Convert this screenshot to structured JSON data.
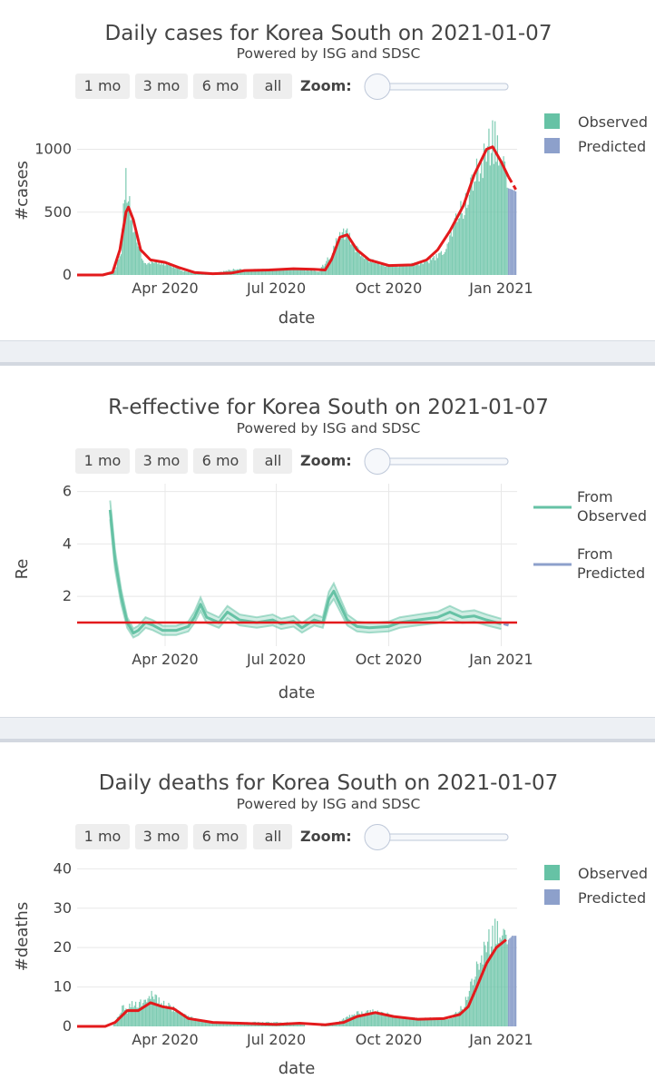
{
  "colors": {
    "observed": "#66c2a5",
    "predicted": "#8da0cb",
    "fit": "#e31a1c",
    "grid": "#e8e8e8",
    "button": "#eeeeee"
  },
  "controls": {
    "buttons": [
      "1 mo",
      "3 mo",
      "6 mo",
      "all"
    ],
    "zoom_label": "Zoom:",
    "zoom_level": 0
  },
  "chart_data": [
    {
      "type": "bar",
      "title": "Daily cases for Korea South on 2021-01-07",
      "subtitle": "Powered by ISG and SDSC",
      "xlabel": "date",
      "ylabel": "#cases",
      "x_ticks": [
        "Apr 2020",
        "Jul 2020",
        "Oct 2020",
        "Jan 2021"
      ],
      "y_ticks": [
        0,
        500,
        1000
      ],
      "ylim": [
        0,
        1300
      ],
      "xlim": [
        "2020-01-20",
        "2021-01-14"
      ],
      "legend": {
        "placement": "top-right",
        "entries": [
          "Observed",
          "Predicted"
        ]
      },
      "series": [
        {
          "name": "Observed",
          "kind": "bar",
          "points": [
            [
              "2020-01-20",
              0
            ],
            [
              "2020-02-10",
              0
            ],
            [
              "2020-02-20",
              40
            ],
            [
              "2020-02-25",
              200
            ],
            [
              "2020-02-29",
              800
            ],
            [
              "2020-03-02",
              590
            ],
            [
              "2020-03-05",
              450
            ],
            [
              "2020-03-10",
              240
            ],
            [
              "2020-03-15",
              100
            ],
            [
              "2020-03-25",
              100
            ],
            [
              "2020-04-05",
              85
            ],
            [
              "2020-04-15",
              30
            ],
            [
              "2020-05-01",
              8
            ],
            [
              "2020-05-10",
              12
            ],
            [
              "2020-05-28",
              45
            ],
            [
              "2020-06-10",
              40
            ],
            [
              "2020-07-01",
              45
            ],
            [
              "2020-07-20",
              45
            ],
            [
              "2020-08-05",
              30
            ],
            [
              "2020-08-15",
              160
            ],
            [
              "2020-08-22",
              320
            ],
            [
              "2020-08-28",
              340
            ],
            [
              "2020-09-05",
              200
            ],
            [
              "2020-09-15",
              120
            ],
            [
              "2020-10-01",
              70
            ],
            [
              "2020-10-15",
              75
            ],
            [
              "2020-11-01",
              100
            ],
            [
              "2020-11-15",
              180
            ],
            [
              "2020-11-25",
              450
            ],
            [
              "2020-12-05",
              600
            ],
            [
              "2020-12-15",
              900
            ],
            [
              "2020-12-25",
              1100
            ],
            [
              "2021-01-01",
              920
            ],
            [
              "2021-01-04",
              800
            ],
            [
              "2021-01-06",
              700
            ]
          ]
        },
        {
          "name": "Predicted",
          "kind": "bar",
          "points": [
            [
              "2021-01-07",
              690
            ],
            [
              "2021-01-10",
              680
            ],
            [
              "2021-01-13",
              665
            ]
          ]
        },
        {
          "kind": "fit_line",
          "points": [
            [
              "2020-01-20",
              0
            ],
            [
              "2020-02-10",
              0
            ],
            [
              "2020-02-18",
              20
            ],
            [
              "2020-02-24",
              200
            ],
            [
              "2020-02-29",
              500
            ],
            [
              "2020-03-02",
              540
            ],
            [
              "2020-03-06",
              440
            ],
            [
              "2020-03-12",
              200
            ],
            [
              "2020-03-20",
              120
            ],
            [
              "2020-04-01",
              100
            ],
            [
              "2020-04-12",
              60
            ],
            [
              "2020-04-25",
              20
            ],
            [
              "2020-05-10",
              10
            ],
            [
              "2020-05-25",
              15
            ],
            [
              "2020-06-05",
              35
            ],
            [
              "2020-06-25",
              40
            ],
            [
              "2020-07-15",
              50
            ],
            [
              "2020-08-01",
              45
            ],
            [
              "2020-08-10",
              40
            ],
            [
              "2020-08-15",
              120
            ],
            [
              "2020-08-22",
              300
            ],
            [
              "2020-08-28",
              320
            ],
            [
              "2020-09-05",
              200
            ],
            [
              "2020-09-15",
              120
            ],
            [
              "2020-10-01",
              75
            ],
            [
              "2020-10-20",
              80
            ],
            [
              "2020-11-01",
              120
            ],
            [
              "2020-11-10",
              200
            ],
            [
              "2020-11-20",
              350
            ],
            [
              "2020-12-01",
              550
            ],
            [
              "2020-12-10",
              800
            ],
            [
              "2020-12-20",
              1000
            ],
            [
              "2020-12-25",
              1020
            ],
            [
              "2021-01-01",
              900
            ],
            [
              "2021-01-07",
              780
            ],
            [
              "2021-01-13",
              680
            ]
          ]
        }
      ]
    },
    {
      "type": "line",
      "title": "R-effective for Korea South on 2021-01-07",
      "subtitle": "Powered by ISG and SDSC",
      "xlabel": "date",
      "ylabel": "Re",
      "x_ticks": [
        "Apr 2020",
        "Jul 2020",
        "Oct 2020",
        "Jan 2021"
      ],
      "y_ticks": [
        2,
        4,
        6
      ],
      "ylim": [
        0.1,
        6.3
      ],
      "xlim": [
        "2020-01-20",
        "2021-01-14"
      ],
      "grid": true,
      "reference_line": 1,
      "legend": {
        "placement": "top-right",
        "entries": [
          "From Observed",
          "From Predicted"
        ]
      },
      "series": [
        {
          "name": "From Observed",
          "values": [
            [
              "2020-02-16",
              5.3
            ],
            [
              "2020-02-20",
              3.4
            ],
            [
              "2020-02-25",
              2.0
            ],
            [
              "2020-03-01",
              1.0
            ],
            [
              "2020-03-06",
              0.6
            ],
            [
              "2020-03-10",
              0.7
            ],
            [
              "2020-03-16",
              1.0
            ],
            [
              "2020-03-22",
              0.9
            ],
            [
              "2020-03-30",
              0.7
            ],
            [
              "2020-04-10",
              0.7
            ],
            [
              "2020-04-20",
              0.85
            ],
            [
              "2020-04-25",
              1.2
            ],
            [
              "2020-04-30",
              1.7
            ],
            [
              "2020-05-05",
              1.2
            ],
            [
              "2020-05-15",
              1.0
            ],
            [
              "2020-05-22",
              1.4
            ],
            [
              "2020-06-01",
              1.1
            ],
            [
              "2020-06-15",
              1.0
            ],
            [
              "2020-06-28",
              1.1
            ],
            [
              "2020-07-05",
              0.95
            ],
            [
              "2020-07-15",
              1.05
            ],
            [
              "2020-07-22",
              0.8
            ],
            [
              "2020-08-01",
              1.1
            ],
            [
              "2020-08-08",
              1.0
            ],
            [
              "2020-08-13",
              1.9
            ],
            [
              "2020-08-17",
              2.2
            ],
            [
              "2020-08-22",
              1.7
            ],
            [
              "2020-08-28",
              1.1
            ],
            [
              "2020-09-05",
              0.85
            ],
            [
              "2020-09-15",
              0.8
            ],
            [
              "2020-10-01",
              0.85
            ],
            [
              "2020-10-10",
              1.0
            ],
            [
              "2020-10-25",
              1.1
            ],
            [
              "2020-11-10",
              1.2
            ],
            [
              "2020-11-20",
              1.4
            ],
            [
              "2020-11-30",
              1.2
            ],
            [
              "2020-12-10",
              1.25
            ],
            [
              "2020-12-20",
              1.1
            ],
            [
              "2021-01-01",
              0.95
            ]
          ]
        },
        {
          "name": "From Predicted",
          "values": [
            [
              "2021-01-03",
              0.95
            ],
            [
              "2021-01-07",
              0.9
            ]
          ]
        }
      ]
    },
    {
      "type": "bar",
      "title": "Daily deaths for Korea South on 2021-01-07",
      "subtitle": "Powered by ISG and SDSC",
      "xlabel": "date",
      "ylabel": "#deaths",
      "x_ticks": [
        "Apr 2020",
        "Jul 2020",
        "Oct 2020",
        "Jan 2021"
      ],
      "y_ticks": [
        0,
        10,
        20,
        30,
        40
      ],
      "ylim": [
        0,
        41
      ],
      "xlim": [
        "2020-01-20",
        "2021-01-14"
      ],
      "legend": {
        "placement": "top-right",
        "entries": [
          "Observed",
          "Predicted"
        ]
      },
      "series": [
        {
          "name": "Observed",
          "kind": "bar",
          "points": [
            [
              "2020-01-20",
              0
            ],
            [
              "2020-02-18",
              0
            ],
            [
              "2020-02-22",
              2
            ],
            [
              "2020-02-26",
              5
            ],
            [
              "2020-03-01",
              4
            ],
            [
              "2020-03-05",
              6
            ],
            [
              "2020-03-10",
              5
            ],
            [
              "2020-03-15",
              7
            ],
            [
              "2020-03-20",
              8
            ],
            [
              "2020-03-28",
              6
            ],
            [
              "2020-04-05",
              5
            ],
            [
              "2020-04-15",
              3
            ],
            [
              "2020-04-25",
              2
            ],
            [
              "2020-05-10",
              1
            ],
            [
              "2020-06-01",
              1
            ],
            [
              "2020-06-20",
              1
            ],
            [
              "2020-07-10",
              1
            ],
            [
              "2020-08-01",
              0
            ],
            [
              "2020-08-20",
              1
            ],
            [
              "2020-09-01",
              3
            ],
            [
              "2020-09-15",
              4
            ],
            [
              "2020-10-01",
              3
            ],
            [
              "2020-10-15",
              2
            ],
            [
              "2020-11-01",
              2
            ],
            [
              "2020-11-20",
              2
            ],
            [
              "2020-12-01",
              5
            ],
            [
              "2020-12-10",
              12
            ],
            [
              "2020-12-15",
              18
            ],
            [
              "2020-12-22",
              22
            ],
            [
              "2020-12-29",
              24
            ],
            [
              "2021-01-03",
              22
            ],
            [
              "2021-01-06",
              21
            ]
          ]
        },
        {
          "name": "Predicted",
          "kind": "bar",
          "points": [
            [
              "2021-01-07",
              22
            ],
            [
              "2021-01-10",
              23
            ],
            [
              "2021-01-13",
              23
            ]
          ]
        },
        {
          "kind": "fit_line",
          "points": [
            [
              "2020-01-20",
              0
            ],
            [
              "2020-02-12",
              0
            ],
            [
              "2020-02-20",
              1
            ],
            [
              "2020-03-01",
              4
            ],
            [
              "2020-03-10",
              4
            ],
            [
              "2020-03-20",
              6
            ],
            [
              "2020-03-30",
              5
            ],
            [
              "2020-04-08",
              4.5
            ],
            [
              "2020-04-20",
              2
            ],
            [
              "2020-05-10",
              1
            ],
            [
              "2020-06-01",
              0.8
            ],
            [
              "2020-07-01",
              0.5
            ],
            [
              "2020-07-20",
              0.8
            ],
            [
              "2020-08-10",
              0.4
            ],
            [
              "2020-08-25",
              1
            ],
            [
              "2020-09-05",
              2.5
            ],
            [
              "2020-09-20",
              3.5
            ],
            [
              "2020-10-05",
              2.5
            ],
            [
              "2020-10-25",
              1.8
            ],
            [
              "2020-11-15",
              2
            ],
            [
              "2020-11-28",
              3
            ],
            [
              "2020-12-05",
              5
            ],
            [
              "2020-12-12",
              10
            ],
            [
              "2020-12-20",
              16
            ],
            [
              "2020-12-28",
              20
            ],
            [
              "2021-01-05",
              22
            ],
            [
              "2021-01-13",
              23.5
            ]
          ]
        }
      ]
    }
  ]
}
